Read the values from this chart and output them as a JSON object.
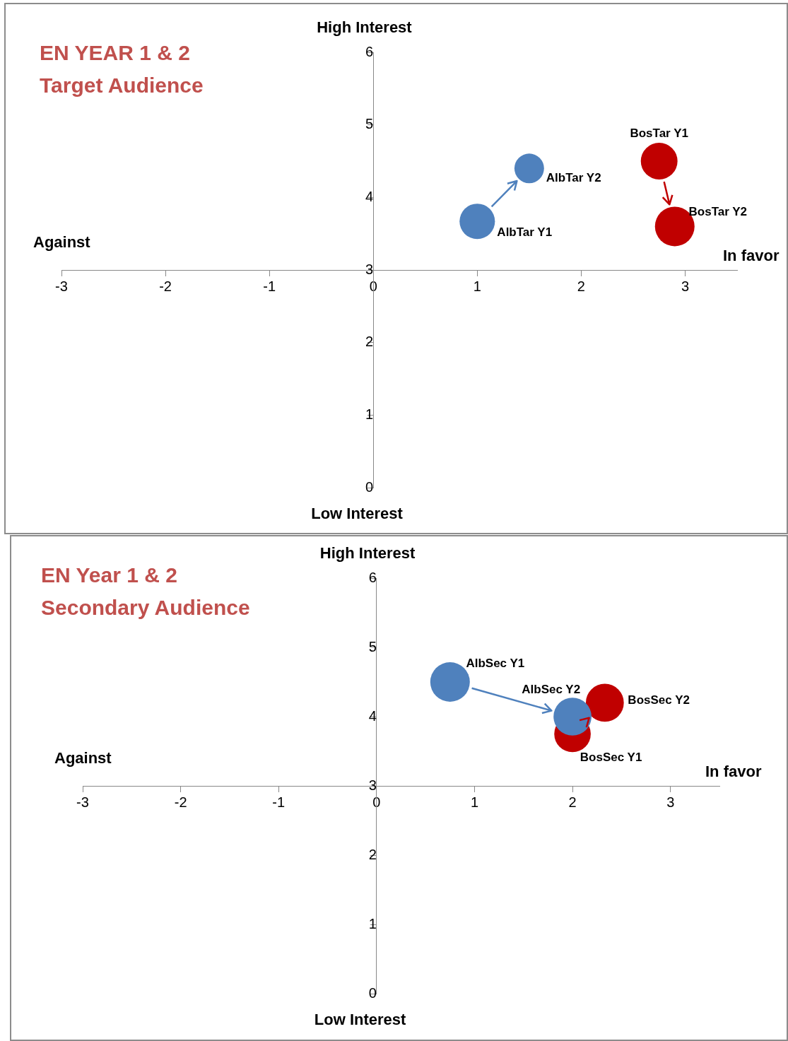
{
  "chart_data": [
    {
      "type": "bubble",
      "title": "EN YEAR 1 & 2",
      "subtitle": "Target Audience",
      "ylabel": "High Interest",
      "annotations": [
        "Low Interest",
        "Against",
        "In favor"
      ],
      "xlim": [
        -3,
        3.5
      ],
      "ylim": [
        0,
        6
      ],
      "xticks": [
        -3,
        -2,
        -1,
        0,
        1,
        2,
        3
      ],
      "yticks": [
        0,
        1,
        2,
        3,
        4,
        5,
        6
      ],
      "grid": false,
      "legend": false,
      "series": [
        {
          "name": "AlbTar Y1",
          "color": "#4f81bd",
          "x": [
            1.0
          ],
          "values": [
            3.67
          ],
          "sizes": [
            0.8
          ]
        },
        {
          "name": "AlbTar Y2",
          "color": "#4f81bd",
          "x": [
            1.5
          ],
          "values": [
            4.4
          ],
          "sizes": [
            0.56
          ]
        },
        {
          "name": "BosTar Y1",
          "color": "#c00000",
          "x": [
            2.75
          ],
          "values": [
            4.5
          ],
          "sizes": [
            0.86
          ]
        },
        {
          "name": "BosTar Y2",
          "color": "#c00000",
          "x": [
            2.9
          ],
          "values": [
            3.6
          ],
          "sizes": [
            1
          ]
        }
      ]
    },
    {
      "type": "bubble",
      "title": "EN Year 1 & 2",
      "subtitle": "Secondary Audience",
      "ylabel": "High Interest",
      "annotations": [
        "Low Interest",
        "Against",
        "In favor"
      ],
      "xlim": [
        -3,
        3.5
      ],
      "ylim": [
        0,
        6
      ],
      "xticks": [
        -3,
        -2,
        -1,
        0,
        1,
        2,
        3
      ],
      "yticks": [
        0,
        1,
        2,
        3,
        4,
        5,
        6
      ],
      "grid": false,
      "legend": false,
      "series": [
        {
          "name": "AlbSec Y1",
          "color": "#4f81bd",
          "x": [
            0.75
          ],
          "values": [
            4.5
          ],
          "sizes": [
            1
          ]
        },
        {
          "name": "AlbSec Y2",
          "color": "#4f81bd",
          "x": [
            2.0
          ],
          "values": [
            4.0
          ],
          "sizes": [
            0.92
          ]
        },
        {
          "name": "BosSec Y1",
          "color": "#c00000",
          "x": [
            2.0
          ],
          "values": [
            3.75
          ],
          "sizes": [
            0.85
          ]
        },
        {
          "name": "BosSec Y2",
          "color": "#c00000",
          "x": [
            2.33
          ],
          "values": [
            4.2
          ],
          "sizes": [
            0.92
          ]
        }
      ]
    }
  ]
}
